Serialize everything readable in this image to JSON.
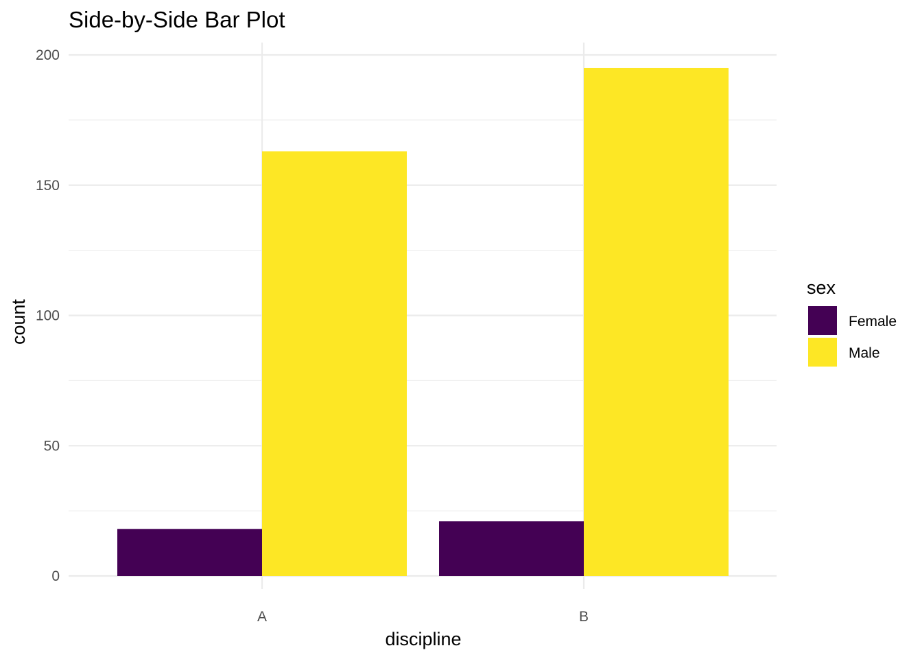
{
  "chart_data": {
    "type": "bar",
    "title": "Side-by-Side Bar Plot",
    "xlabel": "discipline",
    "ylabel": "count",
    "categories": [
      "A",
      "B"
    ],
    "series": [
      {
        "name": "Female",
        "color": "#440154",
        "values": [
          18,
          21
        ]
      },
      {
        "name": "Male",
        "color": "#FDE725",
        "values": [
          163,
          195
        ]
      }
    ],
    "ylim": [
      0,
      200
    ],
    "yticks": [
      0,
      50,
      100,
      150,
      200
    ],
    "ytick_labels": [
      "0",
      "50",
      "100",
      "150",
      "200"
    ],
    "grid": true,
    "legend": {
      "title": "sex",
      "position": "right"
    }
  }
}
